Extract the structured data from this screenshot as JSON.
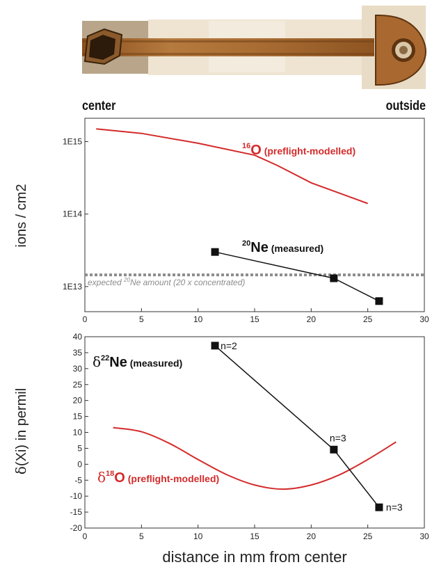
{
  "header": {
    "left_label": "center",
    "right_label": "outside"
  },
  "xlabel": "distance in mm from center",
  "colors": {
    "model": "#d42a2a",
    "measured": "#111111",
    "expected": "#8c8c8c",
    "photo": "#a8682f"
  },
  "chart_data": [
    {
      "type": "line",
      "panel": "top",
      "ylabel": "ions / cm2",
      "yscale": "log",
      "xlim": [
        0,
        30
      ],
      "ylim": [
        4500000000000.0,
        2100000000000000.0
      ],
      "xticks": [
        "0",
        "5",
        "10",
        "15",
        "20",
        "25",
        "30"
      ],
      "yticks": [
        {
          "value": 1000000000000000.0,
          "label": "1E15"
        },
        {
          "value": 100000000000000.0,
          "label": "1E14"
        },
        {
          "value": 10000000000000.0,
          "label": "1E13"
        }
      ],
      "series": [
        {
          "name_sup": "16",
          "name_main": "O",
          "name_tag": "(preflight-modelled)",
          "x": [
            1,
            5,
            10,
            15,
            17,
            20,
            25
          ],
          "y": [
            1500000000000000.0,
            1300000000000000.0,
            950000000000000.0,
            650000000000000.0,
            470000000000000.0,
            270000000000000.0,
            140000000000000.0
          ]
        },
        {
          "name_sup": "20",
          "name_main": "Ne",
          "name_tag": "(measured)",
          "x": [
            11.5,
            22,
            26
          ],
          "y": [
            30000000000000.0,
            13000000000000.0,
            6300000000000.0
          ]
        }
      ],
      "reference": {
        "y": 14500000000000.0,
        "label_prefix": "expected ",
        "label_sup": "20",
        "label_rest": "Ne amount (20 x concentrated)"
      }
    },
    {
      "type": "line",
      "panel": "bottom",
      "ylabel_delta": "δ",
      "ylabel_rest": "(Xi) in permil",
      "xlim": [
        0,
        30
      ],
      "ylim": [
        -20,
        40
      ],
      "xticks": [
        "0",
        "5",
        "10",
        "15",
        "20",
        "25",
        "30"
      ],
      "yticks": [
        "40",
        "35",
        "30",
        "25",
        "20",
        "15",
        "10",
        "5",
        "0",
        "-5",
        "-10",
        "-15",
        "-20"
      ],
      "series": [
        {
          "name_delta": "δ",
          "name_sup": "22",
          "name_main": "Ne",
          "name_tag": "(measured)",
          "x": [
            11.5,
            22,
            26
          ],
          "y": [
            37.2,
            4.6,
            -13.5
          ],
          "point_labels": [
            "n=2",
            "n=3",
            "n=3"
          ]
        },
        {
          "name_delta": "δ",
          "name_sup": "18",
          "name_main": "O",
          "name_tag": "(preflight-modelled)",
          "x": [
            2.5,
            5,
            7.5,
            10,
            12.5,
            15,
            17.5,
            20,
            22.5,
            25,
            27.5
          ],
          "y": [
            11.5,
            10.2,
            6.5,
            1.5,
            -3.2,
            -6.5,
            -7.8,
            -6.5,
            -3.3,
            1.5,
            7.0
          ]
        }
      ]
    }
  ]
}
